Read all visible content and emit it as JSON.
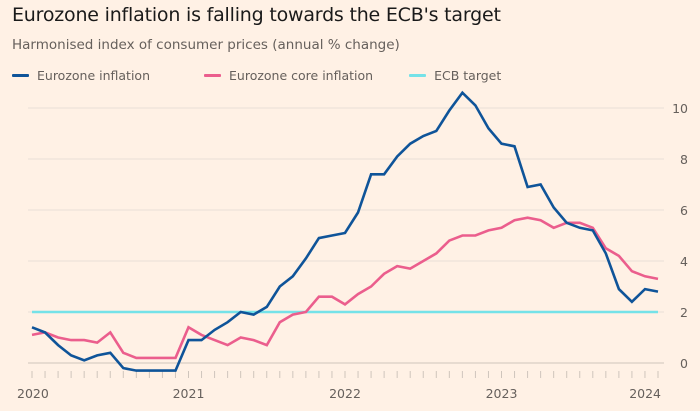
{
  "title": "Eurozone inflation is falling towards the ECB's target",
  "subtitle": "Harmonised index of consumer prices (annual % change)",
  "colors": {
    "background": "#fff1e5",
    "inflation": "#0f5499",
    "core": "#eb5e8d",
    "target": "#75e2e8",
    "grid": "#e9dfd6"
  },
  "chart_data": {
    "type": "line",
    "title": "Eurozone inflation is falling towards the ECB's target",
    "subtitle": "Harmonised index of consumer prices (annual % change)",
    "x_start": "2020-01",
    "x_end": "2024-01",
    "x_frequency": "monthly",
    "x_tick_labels": [
      "2020",
      "2021",
      "2022",
      "2023",
      "2024"
    ],
    "y_ticks": [
      0,
      2,
      4,
      6,
      8,
      10
    ],
    "ylim": [
      -0.5,
      10.7
    ],
    "y_axis_side": "right",
    "grid": true,
    "legend_position": "top-left",
    "series": [
      {
        "name": "Eurozone inflation",
        "color": "#0f5499",
        "values": [
          1.4,
          1.2,
          0.7,
          0.3,
          0.1,
          0.3,
          0.4,
          -0.2,
          -0.3,
          -0.3,
          -0.3,
          -0.3,
          0.9,
          0.9,
          1.3,
          1.6,
          2.0,
          1.9,
          2.2,
          3.0,
          3.4,
          4.1,
          4.9,
          5.0,
          5.1,
          5.9,
          7.4,
          7.4,
          8.1,
          8.6,
          8.9,
          9.1,
          9.9,
          10.6,
          10.1,
          9.2,
          8.6,
          8.5,
          6.9,
          7.0,
          6.1,
          5.5,
          5.3,
          5.2,
          4.3,
          2.9,
          2.4,
          2.9,
          2.8
        ]
      },
      {
        "name": "Eurozone core inflation",
        "color": "#eb5e8d",
        "values": [
          1.1,
          1.2,
          1.0,
          0.9,
          0.9,
          0.8,
          1.2,
          0.4,
          0.2,
          0.2,
          0.2,
          0.2,
          1.4,
          1.1,
          0.9,
          0.7,
          1.0,
          0.9,
          0.7,
          1.6,
          1.9,
          2.0,
          2.6,
          2.6,
          2.3,
          2.7,
          3.0,
          3.5,
          3.8,
          3.7,
          4.0,
          4.3,
          4.8,
          5.0,
          5.0,
          5.2,
          5.3,
          5.6,
          5.7,
          5.6,
          5.3,
          5.5,
          5.5,
          5.3,
          4.5,
          4.2,
          3.6,
          3.4,
          3.3
        ]
      },
      {
        "name": "ECB target",
        "color": "#75e2e8",
        "constant": 2
      }
    ]
  }
}
